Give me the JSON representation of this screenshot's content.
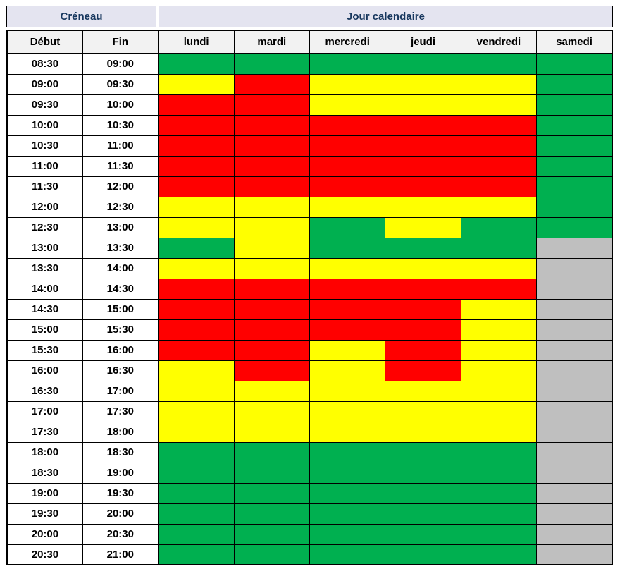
{
  "header": {
    "creneau_label": "Créneau",
    "jour_label": "Jour calendaire"
  },
  "style_colors": {
    "header_bg": "#E4E4F0",
    "header_text": "#17375E",
    "subheader_bg": "#F2F2F2",
    "border": "#000000"
  },
  "chart_data": {
    "type": "heatmap",
    "column_headers": [
      "Début",
      "Fin",
      "lundi",
      "mardi",
      "mercredi",
      "jeudi",
      "vendredi",
      "samedi"
    ],
    "day_labels": [
      "lundi",
      "mardi",
      "mercredi",
      "jeudi",
      "vendredi",
      "samedi"
    ],
    "color_map": {
      "green": "#00B050",
      "yellow": "#FFFF00",
      "red": "#FF0000",
      "gray": "#BFBFBF"
    },
    "rows": [
      {
        "debut": "08:30",
        "fin": "09:00",
        "days": [
          "green",
          "green",
          "green",
          "green",
          "green",
          "green"
        ]
      },
      {
        "debut": "09:00",
        "fin": "09:30",
        "days": [
          "yellow",
          "red",
          "yellow",
          "yellow",
          "yellow",
          "green"
        ]
      },
      {
        "debut": "09:30",
        "fin": "10:00",
        "days": [
          "red",
          "red",
          "yellow",
          "yellow",
          "yellow",
          "green"
        ]
      },
      {
        "debut": "10:00",
        "fin": "10:30",
        "days": [
          "red",
          "red",
          "red",
          "red",
          "red",
          "green"
        ]
      },
      {
        "debut": "10:30",
        "fin": "11:00",
        "days": [
          "red",
          "red",
          "red",
          "red",
          "red",
          "green"
        ]
      },
      {
        "debut": "11:00",
        "fin": "11:30",
        "days": [
          "red",
          "red",
          "red",
          "red",
          "red",
          "green"
        ]
      },
      {
        "debut": "11:30",
        "fin": "12:00",
        "days": [
          "red",
          "red",
          "red",
          "red",
          "red",
          "green"
        ]
      },
      {
        "debut": "12:00",
        "fin": "12:30",
        "days": [
          "yellow",
          "yellow",
          "yellow",
          "yellow",
          "yellow",
          "green"
        ]
      },
      {
        "debut": "12:30",
        "fin": "13:00",
        "days": [
          "yellow",
          "yellow",
          "green",
          "yellow",
          "green",
          "green"
        ]
      },
      {
        "debut": "13:00",
        "fin": "13:30",
        "days": [
          "green",
          "yellow",
          "green",
          "green",
          "green",
          "gray"
        ]
      },
      {
        "debut": "13:30",
        "fin": "14:00",
        "days": [
          "yellow",
          "yellow",
          "yellow",
          "yellow",
          "yellow",
          "gray"
        ]
      },
      {
        "debut": "14:00",
        "fin": "14:30",
        "days": [
          "red",
          "red",
          "red",
          "red",
          "red",
          "gray"
        ]
      },
      {
        "debut": "14:30",
        "fin": "15:00",
        "days": [
          "red",
          "red",
          "red",
          "red",
          "yellow",
          "gray"
        ]
      },
      {
        "debut": "15:00",
        "fin": "15:30",
        "days": [
          "red",
          "red",
          "red",
          "red",
          "yellow",
          "gray"
        ]
      },
      {
        "debut": "15:30",
        "fin": "16:00",
        "days": [
          "red",
          "red",
          "yellow",
          "red",
          "yellow",
          "gray"
        ]
      },
      {
        "debut": "16:00",
        "fin": "16:30",
        "days": [
          "yellow",
          "red",
          "yellow",
          "red",
          "yellow",
          "gray"
        ]
      },
      {
        "debut": "16:30",
        "fin": "17:00",
        "days": [
          "yellow",
          "yellow",
          "yellow",
          "yellow",
          "yellow",
          "gray"
        ]
      },
      {
        "debut": "17:00",
        "fin": "17:30",
        "days": [
          "yellow",
          "yellow",
          "yellow",
          "yellow",
          "yellow",
          "gray"
        ]
      },
      {
        "debut": "17:30",
        "fin": "18:00",
        "days": [
          "yellow",
          "yellow",
          "yellow",
          "yellow",
          "yellow",
          "gray"
        ]
      },
      {
        "debut": "18:00",
        "fin": "18:30",
        "days": [
          "green",
          "green",
          "green",
          "green",
          "green",
          "gray"
        ]
      },
      {
        "debut": "18:30",
        "fin": "19:00",
        "days": [
          "green",
          "green",
          "green",
          "green",
          "green",
          "gray"
        ]
      },
      {
        "debut": "19:00",
        "fin": "19:30",
        "days": [
          "green",
          "green",
          "green",
          "green",
          "green",
          "gray"
        ]
      },
      {
        "debut": "19:30",
        "fin": "20:00",
        "days": [
          "green",
          "green",
          "green",
          "green",
          "green",
          "gray"
        ]
      },
      {
        "debut": "20:00",
        "fin": "20:30",
        "days": [
          "green",
          "green",
          "green",
          "green",
          "green",
          "gray"
        ]
      },
      {
        "debut": "20:30",
        "fin": "21:00",
        "days": [
          "green",
          "green",
          "green",
          "green",
          "green",
          "gray"
        ]
      }
    ]
  }
}
